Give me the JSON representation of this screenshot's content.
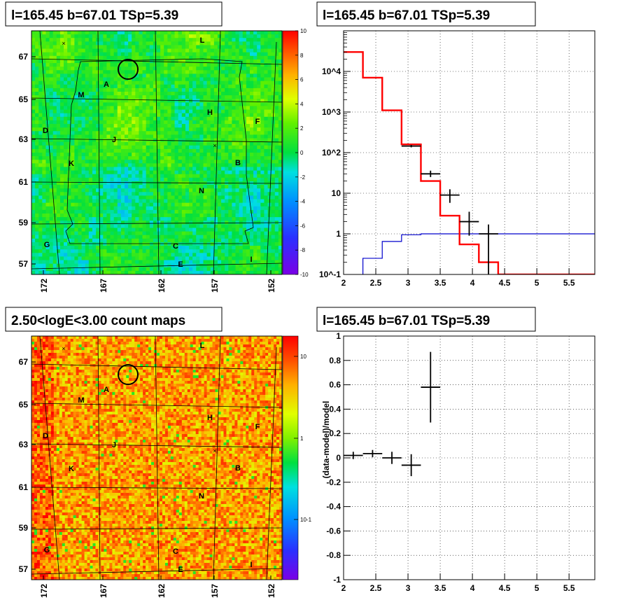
{
  "panels": {
    "tl": {
      "title": "l=165.45 b=67.01 TSp=5.39"
    },
    "tr": {
      "title": "l=165.45 b=67.01 TSp=5.39"
    },
    "bl": {
      "title": "2.50<logE<3.00 count maps"
    },
    "br": {
      "title": "l=165.45 b=67.01 TSp=5.39"
    }
  },
  "skymap": {
    "x_ticks": [
      "172",
      "167",
      "162",
      "157",
      "152"
    ],
    "y_ticks": [
      "67",
      "65",
      "63",
      "61",
      "59",
      "57"
    ],
    "source_labels": [
      "L",
      "A",
      "M",
      "H",
      "F",
      "D",
      "J",
      "K",
      "B",
      "N",
      "G",
      "C",
      "I",
      "E"
    ],
    "residual_colorbar_ticks": [
      "10",
      "8",
      "6",
      "4",
      "2",
      "0",
      "-2",
      "-4",
      "-6",
      "-8",
      "-10"
    ],
    "count_colorbar_ticks": [
      "10",
      "1",
      "10-1"
    ]
  },
  "chart_data": [
    {
      "type": "heatmap",
      "title": "l=165.45 b=67.01 TSp=5.39",
      "xlabel": "",
      "ylabel": "",
      "x_tick_labels": [
        "172",
        "167",
        "162",
        "157",
        "152"
      ],
      "y_tick_labels": [
        "67",
        "65",
        "63",
        "61",
        "59",
        "57"
      ],
      "zlim": [
        -10,
        10
      ],
      "colormap": "rainbow",
      "sources": [
        "L",
        "A",
        "M",
        "H",
        "F",
        "D",
        "J",
        "K",
        "B",
        "N",
        "G",
        "C",
        "I",
        "E"
      ]
    },
    {
      "type": "line",
      "title": "l=165.45 b=67.01 TSp=5.39",
      "xlabel": "",
      "ylabel": "",
      "xlim": [
        2,
        5.9
      ],
      "ylim": [
        0.1,
        100000
      ],
      "yscale": "log",
      "x_ticks": [
        2,
        2.5,
        3,
        3.5,
        4,
        4.5,
        5,
        5.5
      ],
      "y_ticks": [
        "10^-1",
        "1",
        "10",
        "10^2",
        "10^3",
        "10^4"
      ],
      "grid": true,
      "model_step": {
        "edges": [
          2.0,
          2.3,
          2.6,
          2.9,
          3.2,
          3.5,
          3.8,
          4.1,
          4.4,
          5.9
        ],
        "values": [
          30000,
          7000,
          1100,
          160,
          20,
          2.8,
          0.55,
          0.2,
          0.1
        ]
      },
      "blue_step": {
        "edges": [
          2.3,
          2.6,
          2.9,
          3.2,
          5.9
        ],
        "values": [
          0.25,
          0.65,
          0.95,
          1.0
        ]
      },
      "data_points": [
        {
          "x": 3.05,
          "xerr": 0.15,
          "y": 145,
          "ylo": 135,
          "yhi": 155
        },
        {
          "x": 3.35,
          "xerr": 0.15,
          "y": 30,
          "ylo": 25,
          "yhi": 36
        },
        {
          "x": 3.65,
          "xerr": 0.15,
          "y": 9,
          "ylo": 5.8,
          "yhi": 12.5
        },
        {
          "x": 3.95,
          "xerr": 0.15,
          "y": 2,
          "ylo": 0.9,
          "yhi": 3.5
        },
        {
          "x": 4.25,
          "xerr": 0.15,
          "y": 1,
          "ylo": 0.1,
          "yhi": 1.7
        }
      ]
    },
    {
      "type": "heatmap",
      "title": "2.50<logE<3.00 count maps",
      "xlabel": "",
      "ylabel": "",
      "x_tick_labels": [
        "172",
        "167",
        "162",
        "157",
        "152"
      ],
      "y_tick_labels": [
        "67",
        "65",
        "63",
        "61",
        "59",
        "57"
      ],
      "zscale": "log",
      "colormap": "rainbow",
      "sources": [
        "L",
        "A",
        "M",
        "H",
        "F",
        "D",
        "J",
        "K",
        "B",
        "N",
        "G",
        "C",
        "I",
        "E"
      ]
    },
    {
      "type": "scatter",
      "title": "l=165.45 b=67.01 TSp=5.39",
      "xlabel": "",
      "ylabel": "(data-model)/model",
      "xlim": [
        2,
        5.9
      ],
      "ylim": [
        -1,
        1
      ],
      "x_ticks": [
        2,
        2.5,
        3,
        3.5,
        4,
        4.5,
        5,
        5.5
      ],
      "y_ticks": [
        1,
        0.8,
        0.6,
        0.4,
        0.2,
        0,
        -0.2,
        -0.4,
        -0.6,
        -0.8,
        -1
      ],
      "grid": true,
      "points": [
        {
          "x": 2.15,
          "xerr": 0.15,
          "y": 0.02,
          "yerr": 0.03
        },
        {
          "x": 2.45,
          "xerr": 0.15,
          "y": 0.035,
          "yerr": 0.03
        },
        {
          "x": 2.75,
          "xerr": 0.15,
          "y": 0.0,
          "yerr": 0.05
        },
        {
          "x": 3.05,
          "xerr": 0.15,
          "y": -0.06,
          "yerr": 0.09
        },
        {
          "x": 3.35,
          "xerr": 0.15,
          "y": 0.58,
          "yerr": 0.29
        }
      ]
    }
  ]
}
